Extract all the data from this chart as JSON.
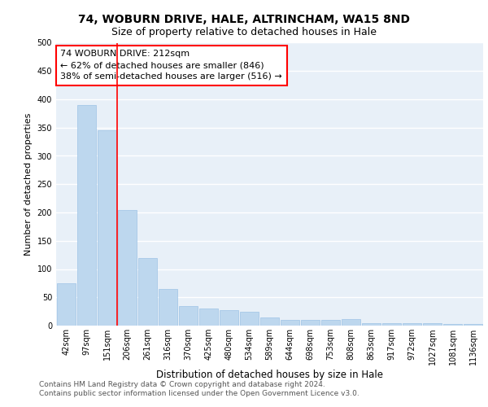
{
  "title1": "74, WOBURN DRIVE, HALE, ALTRINCHAM, WA15 8ND",
  "title2": "Size of property relative to detached houses in Hale",
  "xlabel": "Distribution of detached houses by size in Hale",
  "ylabel": "Number of detached properties",
  "categories": [
    "42sqm",
    "97sqm",
    "151sqm",
    "206sqm",
    "261sqm",
    "316sqm",
    "370sqm",
    "425sqm",
    "480sqm",
    "534sqm",
    "589sqm",
    "644sqm",
    "698sqm",
    "753sqm",
    "808sqm",
    "863sqm",
    "917sqm",
    "972sqm",
    "1027sqm",
    "1081sqm",
    "1136sqm"
  ],
  "values": [
    75,
    390,
    345,
    205,
    120,
    65,
    35,
    30,
    28,
    25,
    15,
    10,
    10,
    10,
    12,
    5,
    5,
    5,
    5,
    3,
    3
  ],
  "bar_color": "#bdd7ee",
  "bar_edge_color": "#9dc3e6",
  "annotation_line1": "74 WOBURN DRIVE: 212sqm",
  "annotation_line2": "← 62% of detached houses are smaller (846)",
  "annotation_line3": "38% of semi-detached houses are larger (516) →",
  "property_line_x": 2.5,
  "ylim": [
    0,
    500
  ],
  "yticks": [
    0,
    50,
    100,
    150,
    200,
    250,
    300,
    350,
    400,
    450,
    500
  ],
  "background_color": "#e8f0f8",
  "footer_text": "Contains HM Land Registry data © Crown copyright and database right 2024.\nContains public sector information licensed under the Open Government Licence v3.0.",
  "title1_fontsize": 10,
  "title2_fontsize": 9,
  "xlabel_fontsize": 8.5,
  "ylabel_fontsize": 8,
  "annotation_fontsize": 8,
  "footer_fontsize": 6.5,
  "tick_fontsize": 7
}
